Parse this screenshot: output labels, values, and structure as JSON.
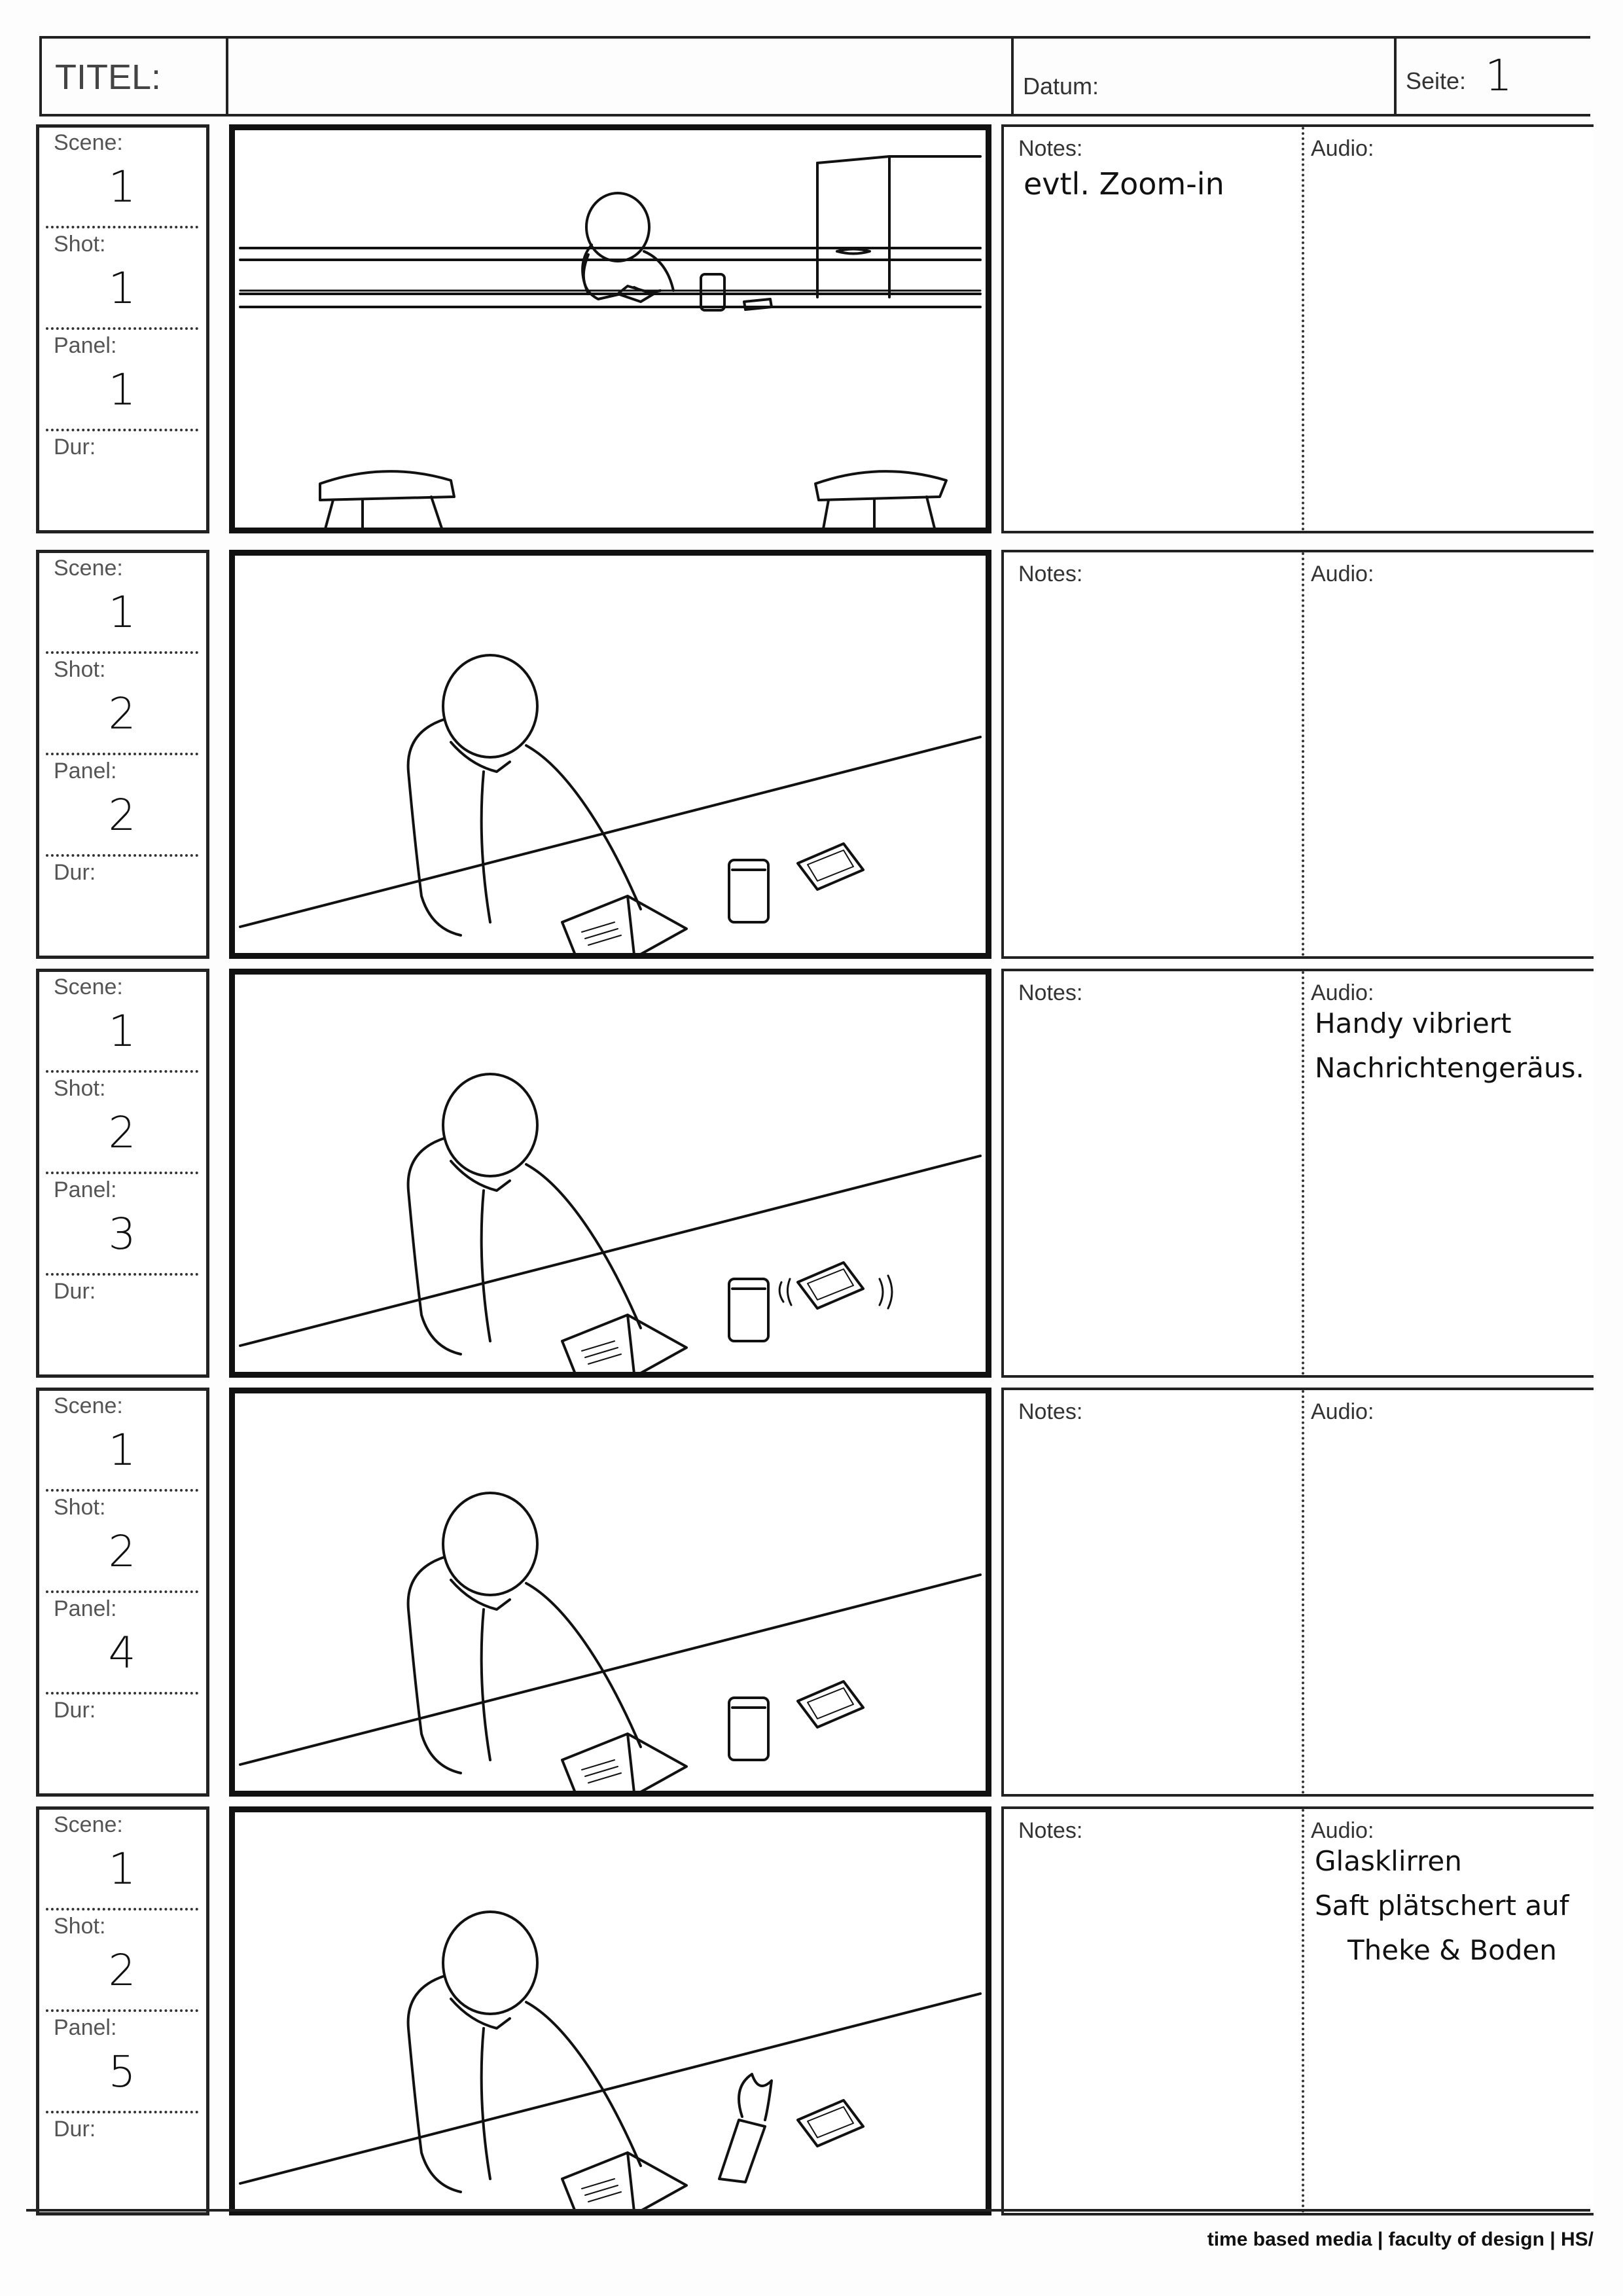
{
  "header": {
    "titel_label": "TITEL:",
    "titel_value": "",
    "datum_label": "Datum:",
    "datum_value": "",
    "seite_label": "Seite:",
    "seite_value": "1"
  },
  "labels": {
    "scene": "Scene:",
    "shot": "Shot:",
    "panel": "Panel:",
    "dur": "Dur:",
    "notes": "Notes:",
    "audio": "Audio:"
  },
  "rows": [
    {
      "scene": "1",
      "shot": "1",
      "panel": "1",
      "dur": "",
      "notes": [
        "evtl. Zoom-in"
      ],
      "audio": []
    },
    {
      "scene": "1",
      "shot": "2",
      "panel": "2",
      "dur": "",
      "notes": [],
      "audio": []
    },
    {
      "scene": "1",
      "shot": "2",
      "panel": "3",
      "dur": "",
      "notes": [],
      "audio": [
        "Handy vibriert",
        "Nachrichtengeräus."
      ]
    },
    {
      "scene": "1",
      "shot": "2",
      "panel": "4",
      "dur": "",
      "notes": [],
      "audio": []
    },
    {
      "scene": "1",
      "shot": "2",
      "panel": "5",
      "dur": "",
      "notes": [],
      "audio": [
        "Glasklirren",
        "Saft plätschert auf",
        "Theke & Boden"
      ]
    }
  ],
  "footer": {
    "text": "time based media  |  faculty of design  |  HS/"
  }
}
